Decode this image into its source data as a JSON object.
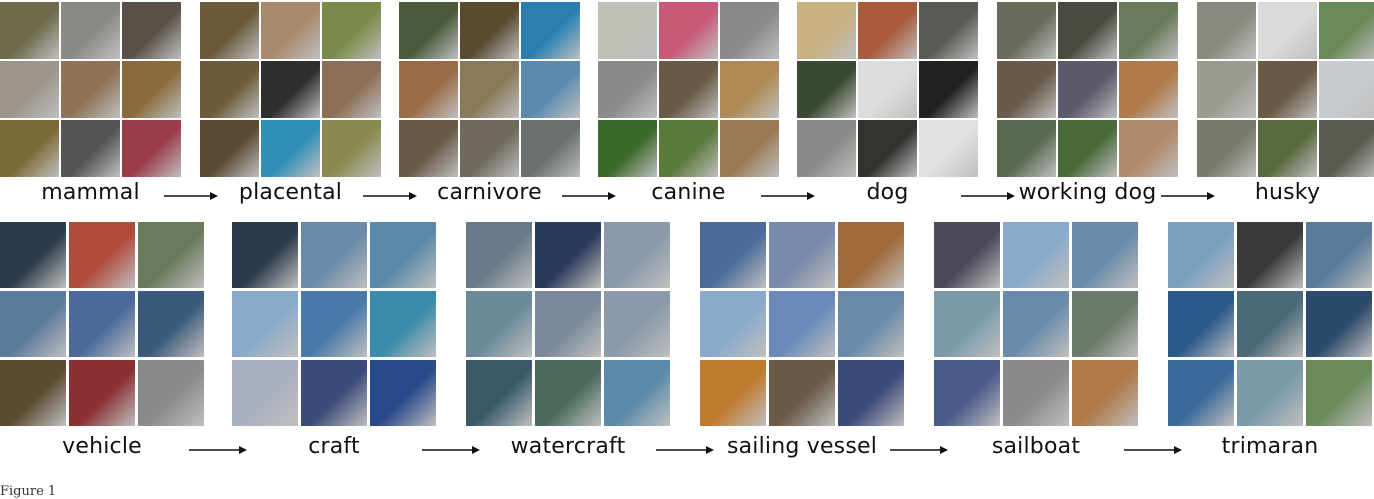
{
  "rows": [
    {
      "categories": [
        {
          "label": "mammal",
          "palette": [
            "#6e6a4a",
            "#8c8a86",
            "#5a5148",
            "#9c958c",
            "#8e7455",
            "#8b6b3d",
            "#7c6a36",
            "#555555",
            "#9a3d4a"
          ]
        },
        {
          "label": "placental",
          "palette": [
            "#6b5a3a",
            "#a88a6e",
            "#7b8a4a",
            "#6c5a38",
            "#2e2e2e",
            "#8c6d55",
            "#5a4a32",
            "#2f8fb5",
            "#8a8a50"
          ]
        },
        {
          "label": "carnivore",
          "palette": [
            "#4a5a3a",
            "#5a4a30",
            "#2a7fb0",
            "#9a6a45",
            "#8a7a5a",
            "#5a8ab0",
            "#6a5a48",
            "#6f6a5c",
            "#6a7070"
          ]
        },
        {
          "label": "canine",
          "palette": [
            "#c0c0b8",
            "#c85a78",
            "#8a8a8a",
            "#8a8a88",
            "#6a5a45",
            "#b08a55",
            "#3a6a2a",
            "#5a7a3a",
            "#9a7a55"
          ]
        },
        {
          "label": "dog",
          "palette": [
            "#c8b080",
            "#a85a3a",
            "#5a5a55",
            "#3a4a30",
            "#dcdcdc",
            "#222222",
            "#8a8a8a",
            "#333330",
            "#e0e0e0"
          ]
        },
        {
          "label": "working dog",
          "palette": [
            "#6a6a5a",
            "#4a4a40",
            "#6a7a5a",
            "#6a5a4a",
            "#5a5a6a",
            "#b07a4a",
            "#5a6a50",
            "#4a6a3a",
            "#b08a6a"
          ]
        },
        {
          "label": "husky",
          "palette": [
            "#8a8a80",
            "#dadada",
            "#6a8a5a",
            "#9a9a90",
            "#6a5a45",
            "#c8ccd0",
            "#7a7a6a",
            "#5a6a40",
            "#5a5a50"
          ]
        }
      ]
    },
    {
      "categories": [
        {
          "label": "vehicle",
          "palette": [
            "#2a3a4a",
            "#b04a3a",
            "#6a7a5a",
            "#5a7a9a",
            "#4a6a9a",
            "#3a5a7a",
            "#5a4a30",
            "#8a3030",
            "#8a8a8a"
          ]
        },
        {
          "label": "craft",
          "palette": [
            "#2a3a4a",
            "#6a8aaa",
            "#5a8aaa",
            "#8aaaca",
            "#4a7aaa",
            "#3a8aaa",
            "#aab0c0",
            "#3a4a7a",
            "#2a4a8a"
          ]
        },
        {
          "label": "watercraft",
          "palette": [
            "#6a7a8a",
            "#2a3a5a",
            "#8a9aaa",
            "#6a8a9a",
            "#7a8a9a",
            "#8a9aaa",
            "#3a5a6a",
            "#4a6a5a",
            "#5a8aaa"
          ]
        },
        {
          "label": "sailing vessel",
          "palette": [
            "#4a6a9a",
            "#7a8aaa",
            "#a06a3a",
            "#8aaacc",
            "#6a8aba",
            "#6a8aaa",
            "#c07a30",
            "#6a5a4a",
            "#3a4a7a"
          ]
        },
        {
          "label": "sailboat",
          "palette": [
            "#4a4a5a",
            "#8aaacc",
            "#6a8aaa",
            "#7a9aaa",
            "#6a8aaa",
            "#6a7a6a",
            "#4a5a8a",
            "#8a8a8a",
            "#b07a4a"
          ]
        },
        {
          "label": "trimaran",
          "palette": [
            "#7aa0c0",
            "#3a3a3a",
            "#5a7a9a",
            "#2a5a8a",
            "#4a6a7a",
            "#2a4a6a",
            "#3a6a9a",
            "#7a9aaa",
            "#6a8a5a"
          ]
        }
      ]
    }
  ],
  "figure_caption": "Figure 1"
}
